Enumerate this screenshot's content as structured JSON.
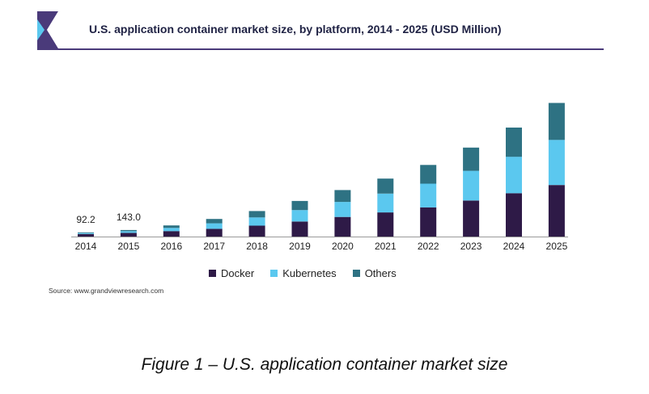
{
  "header": {
    "title": "U.S. application container market size, by platform, 2014 - 2025 (USD Million)"
  },
  "chart_data": {
    "type": "bar",
    "stacked": true,
    "categories": [
      "2014",
      "2015",
      "2016",
      "2017",
      "2018",
      "2019",
      "2020",
      "2021",
      "2022",
      "2023",
      "2024",
      "2025"
    ],
    "series": [
      {
        "name": "Docker",
        "color": "#2e1a47",
        "values": [
          55,
          80,
          120,
          170,
          240,
          330,
          430,
          530,
          640,
          790,
          950,
          1130
        ]
      },
      {
        "name": "Kubernetes",
        "color": "#5bc8ef",
        "values": [
          22,
          38,
          70,
          120,
          180,
          250,
          330,
          410,
          520,
          650,
          800,
          990
        ]
      },
      {
        "name": "Others",
        "color": "#2e7283",
        "values": [
          15,
          25,
          55,
          95,
          140,
          200,
          260,
          330,
          410,
          510,
          640,
          810
        ]
      }
    ],
    "data_labels": [
      {
        "category": "2014",
        "text": "92.2"
      },
      {
        "category": "2015",
        "text": "143.0"
      }
    ],
    "legend_position": "bottom",
    "grid": false
  },
  "source": "Source: www.grandviewresearch.com",
  "caption": "Figure 1 – U.S. application container market size"
}
